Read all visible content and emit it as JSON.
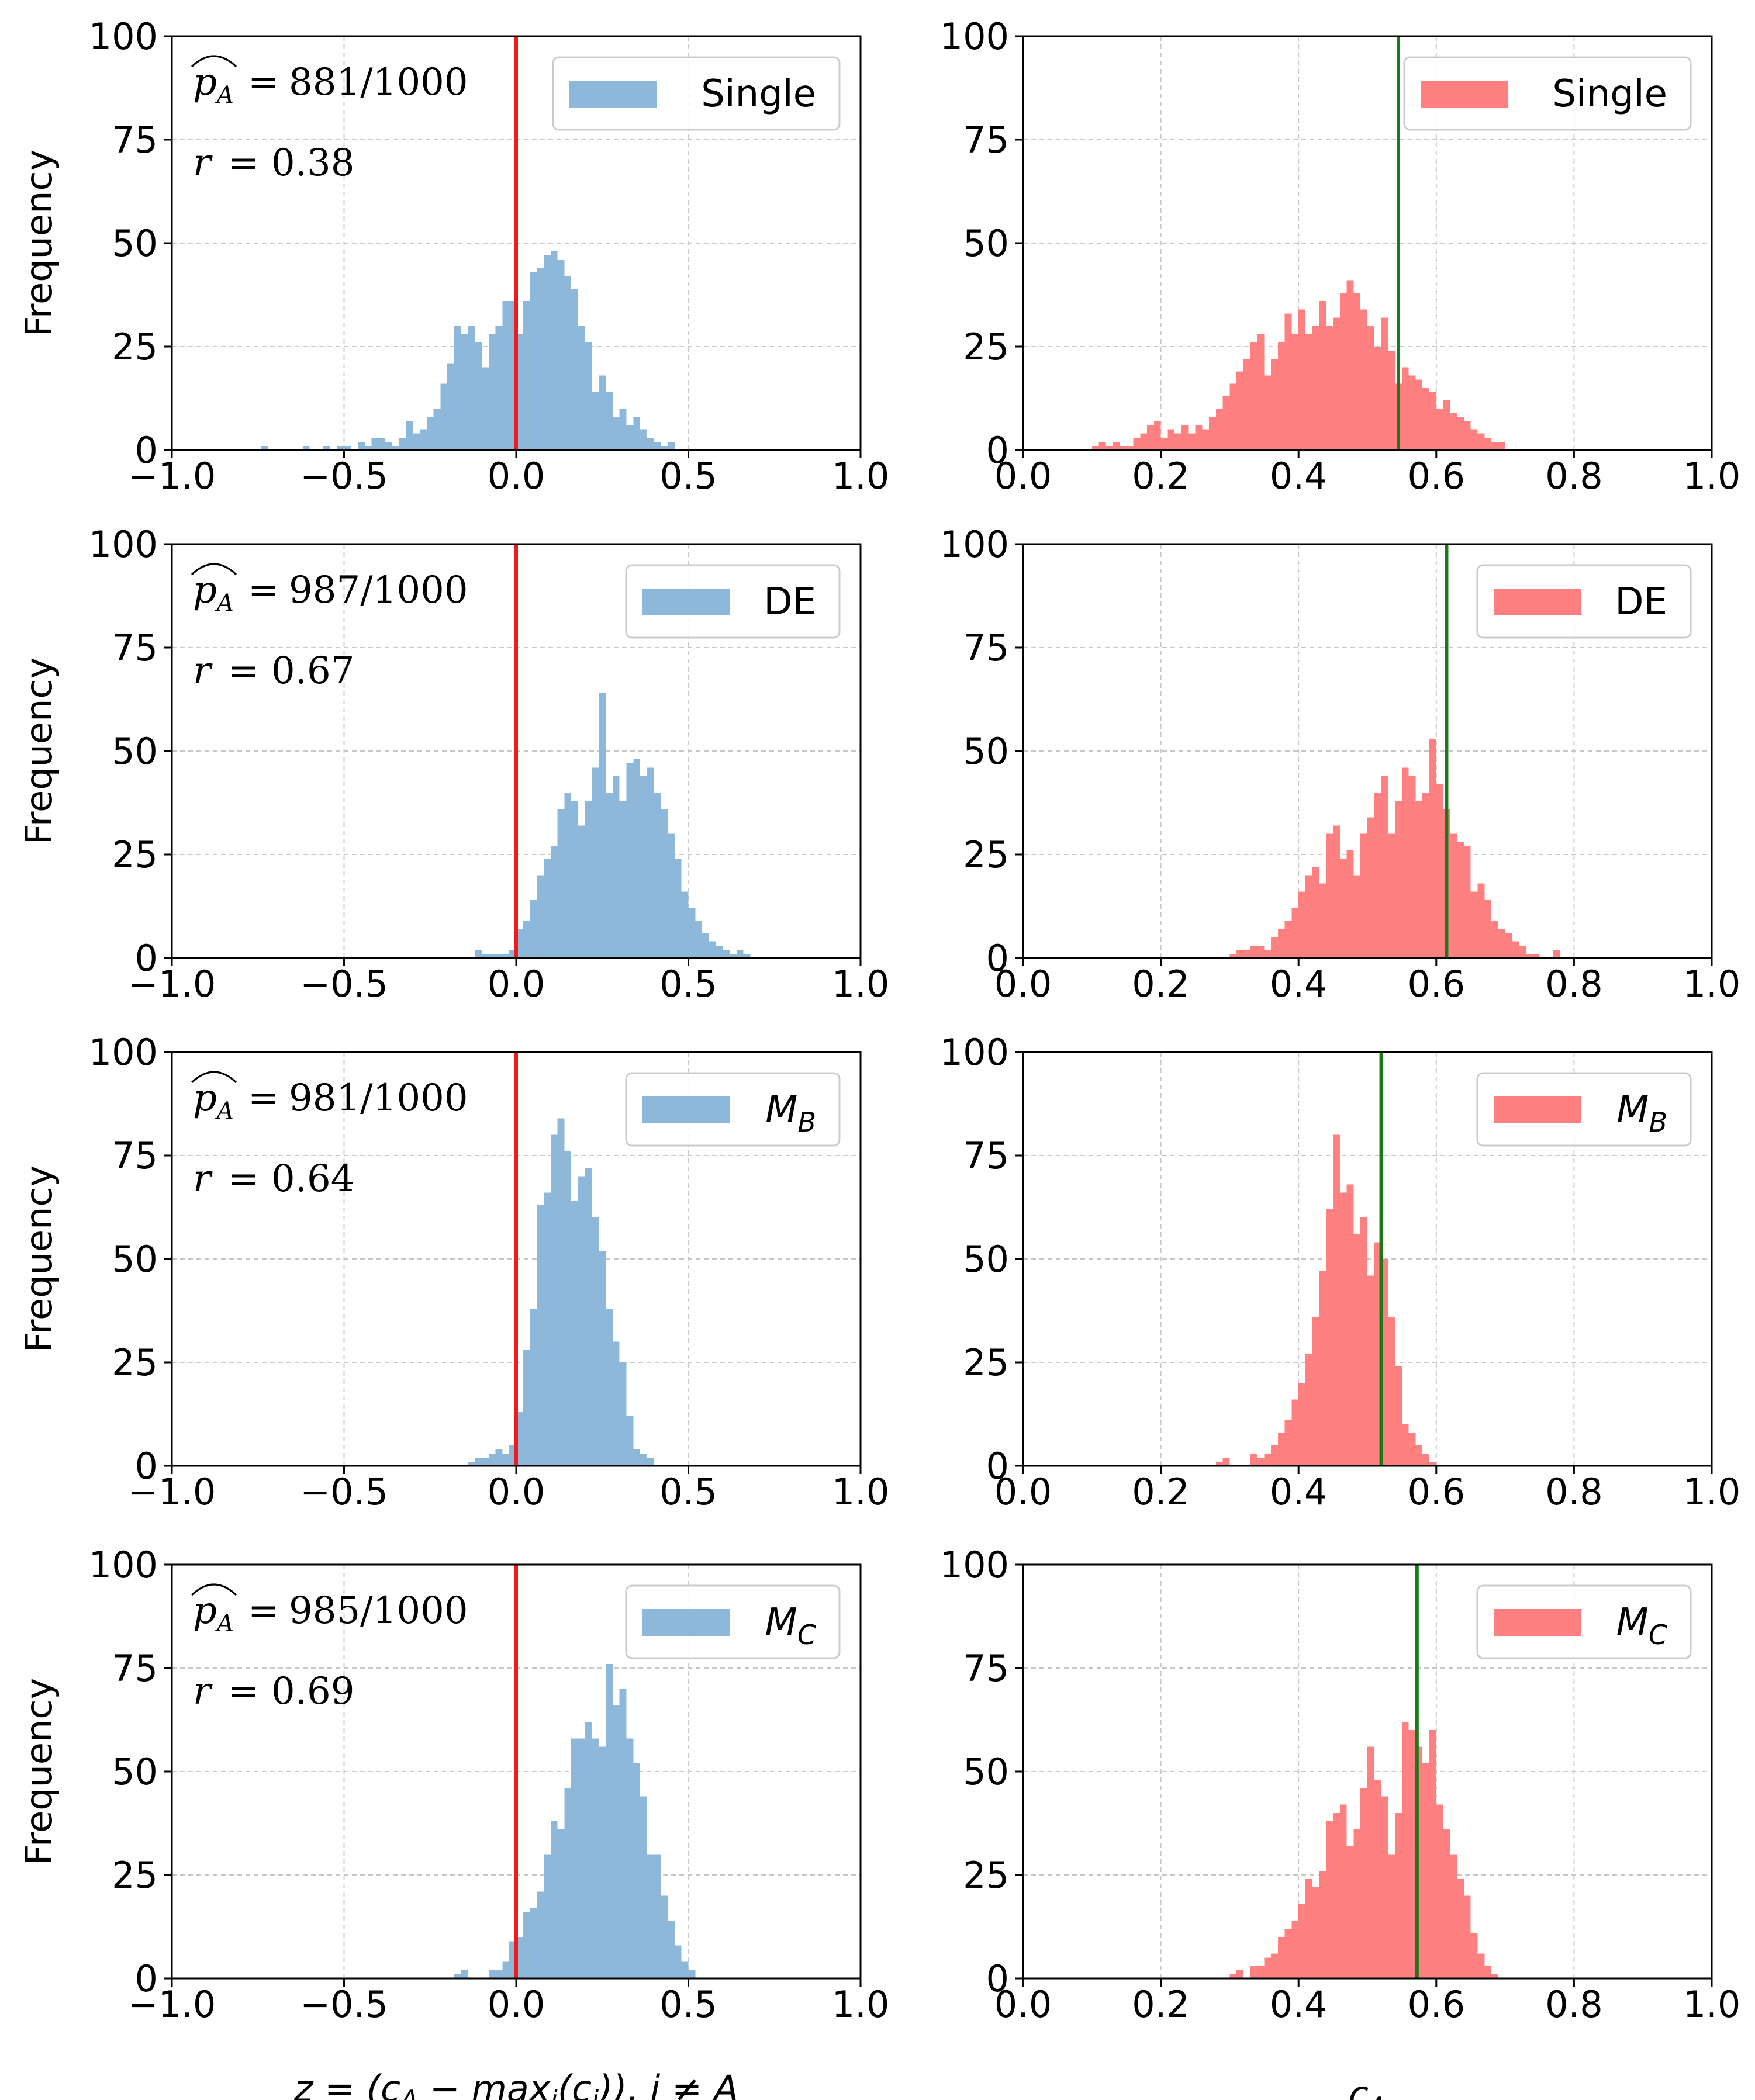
{
  "figure": {
    "y_axis_label": "Frequency",
    "x_axis_label_left": "z = (c_A − max_i(c_i)), i ≠ A",
    "x_axis_label_right": "c_A",
    "colors": {
      "blue_bar": "#8db8d9",
      "red_bar": "#ff8080",
      "threshold_line": "#ee1c1c",
      "mean_line": "#1a7a1a",
      "grid": "#c8c8c8"
    }
  },
  "chart_data": [
    {
      "type": "bar",
      "panel": "margin-single",
      "title": "",
      "legend": "Single",
      "legend_position": "top-right",
      "color": "#8db8d9",
      "xlabel": "",
      "ylabel": "Frequency",
      "xlim": [
        -1.0,
        1.0
      ],
      "ylim": [
        0,
        100
      ],
      "xticks": [
        "−1.0",
        "−0.5",
        "0.0",
        "0.5",
        "1.0"
      ],
      "yticks": [
        "0",
        "25",
        "50",
        "75",
        "100"
      ],
      "vline": 0.0,
      "vline_color": "#ee1c1c",
      "annotation": {
        "p_label": "p̂A =",
        "p_value": "881/1000",
        "r_label": "r",
        "r_value": "= 0.38"
      },
      "bin_width": 0.02,
      "bins_start": -0.74,
      "values": [
        1,
        0,
        0,
        0,
        0,
        0,
        1,
        0,
        0,
        1,
        0,
        1,
        1,
        0,
        2,
        1,
        3,
        3,
        2,
        1,
        3,
        7,
        4,
        5,
        8,
        10,
        16,
        21,
        30,
        28,
        30,
        26,
        20,
        28,
        30,
        36,
        36,
        28,
        36,
        43,
        44,
        47,
        48,
        46,
        42,
        39,
        30,
        26,
        14,
        18,
        14,
        8,
        10,
        6,
        8,
        5,
        3,
        2,
        1,
        2
      ]
    },
    {
      "type": "bar",
      "panel": "confidence-single",
      "title": "",
      "legend": "Single",
      "legend_position": "top-right",
      "color": "#ff8080",
      "xlabel": "",
      "ylabel": "",
      "xlim": [
        0.0,
        1.0
      ],
      "ylim": [
        0,
        100
      ],
      "xticks": [
        "0.0",
        "0.2",
        "0.4",
        "0.6",
        "0.8",
        "1.0"
      ],
      "yticks": [
        "0",
        "25",
        "50",
        "75",
        "100"
      ],
      "vline": 0.545,
      "vline_color": "#1a7a1a",
      "bin_width": 0.01,
      "bins_start": 0.1,
      "values": [
        1,
        2,
        1,
        2,
        1,
        1,
        3,
        4,
        6,
        7,
        3,
        5,
        4,
        6,
        4,
        6,
        5,
        8,
        10,
        13,
        16,
        19,
        22,
        26,
        28,
        18,
        22,
        26,
        33,
        28,
        34,
        28,
        30,
        36,
        30,
        32,
        38,
        41,
        38,
        34,
        30,
        25,
        32,
        24,
        16,
        20,
        18,
        17,
        15,
        14,
        10,
        12,
        9,
        8,
        7,
        5,
        4,
        3,
        2,
        2
      ]
    },
    {
      "type": "bar",
      "panel": "margin-de",
      "title": "",
      "legend": "DE",
      "legend_position": "top-right",
      "color": "#8db8d9",
      "xlabel": "",
      "ylabel": "Frequency",
      "xlim": [
        -1.0,
        1.0
      ],
      "ylim": [
        0,
        100
      ],
      "xticks": [
        "−1.0",
        "−0.5",
        "0.0",
        "0.5",
        "1.0"
      ],
      "yticks": [
        "0",
        "25",
        "50",
        "75",
        "100"
      ],
      "vline": 0.0,
      "vline_color": "#ee1c1c",
      "annotation": {
        "p_label": "p̂A =",
        "p_value": "987/1000",
        "r_label": "r",
        "r_value": "= 0.67"
      },
      "bin_width": 0.02,
      "bins_start": -0.12,
      "values": [
        2,
        1,
        1,
        1,
        1,
        2,
        7,
        9,
        14,
        20,
        24,
        27,
        36,
        40,
        38,
        32,
        38,
        46,
        64,
        40,
        44,
        38,
        47,
        48,
        44,
        46,
        40,
        36,
        30,
        24,
        16,
        12,
        9,
        6,
        4,
        3,
        2,
        1,
        2,
        1
      ]
    },
    {
      "type": "bar",
      "panel": "confidence-de",
      "title": "",
      "legend": "DE",
      "legend_position": "top-right",
      "color": "#ff8080",
      "xlabel": "",
      "ylabel": "",
      "xlim": [
        0.0,
        1.0
      ],
      "ylim": [
        0,
        100
      ],
      "xticks": [
        "0.0",
        "0.2",
        "0.4",
        "0.6",
        "0.8",
        "1.0"
      ],
      "yticks": [
        "0",
        "25",
        "50",
        "75",
        "100"
      ],
      "vline": 0.615,
      "vline_color": "#1a7a1a",
      "bin_width": 0.01,
      "bins_start": 0.3,
      "values": [
        1,
        2,
        2,
        3,
        3,
        2,
        5,
        7,
        9,
        12,
        16,
        20,
        22,
        18,
        30,
        32,
        24,
        26,
        20,
        30,
        34,
        40,
        44,
        30,
        38,
        46,
        44,
        38,
        40,
        53,
        42,
        36,
        30,
        28,
        27,
        16,
        18,
        14,
        9,
        7,
        6,
        4,
        3,
        1,
        1,
        0,
        0,
        2
      ]
    },
    {
      "type": "bar",
      "panel": "margin-mb",
      "title": "",
      "legend": "M_B",
      "legend_position": "top-right",
      "color": "#8db8d9",
      "xlabel": "",
      "ylabel": "Frequency",
      "xlim": [
        -1.0,
        1.0
      ],
      "ylim": [
        0,
        100
      ],
      "xticks": [
        "−1.0",
        "−0.5",
        "0.0",
        "0.5",
        "1.0"
      ],
      "yticks": [
        "0",
        "25",
        "50",
        "75",
        "100"
      ],
      "vline": 0.0,
      "vline_color": "#ee1c1c",
      "annotation": {
        "p_label": "p̂A =",
        "p_value": "981/1000",
        "r_label": "r",
        "r_value": "= 0.64"
      },
      "bin_width": 0.02,
      "bins_start": -0.14,
      "values": [
        1,
        2,
        2,
        3,
        4,
        3,
        5,
        13,
        28,
        38,
        63,
        66,
        80,
        84,
        76,
        64,
        70,
        72,
        60,
        52,
        38,
        30,
        25,
        12,
        4,
        3,
        2
      ]
    },
    {
      "type": "bar",
      "panel": "confidence-mb",
      "title": "",
      "legend": "M_B",
      "legend_position": "top-right",
      "color": "#ff8080",
      "xlabel": "",
      "ylabel": "",
      "xlim": [
        0.0,
        1.0
      ],
      "ylim": [
        0,
        100
      ],
      "xticks": [
        "0.0",
        "0.2",
        "0.4",
        "0.6",
        "0.8",
        "1.0"
      ],
      "yticks": [
        "0",
        "25",
        "50",
        "75",
        "100"
      ],
      "vline": 0.52,
      "vline_color": "#1a7a1a",
      "bin_width": 0.01,
      "bins_start": 0.28,
      "values": [
        1,
        2,
        0,
        0,
        0,
        3,
        2,
        3,
        5,
        8,
        11,
        16,
        20,
        27,
        36,
        47,
        62,
        80,
        66,
        68,
        56,
        60,
        46,
        54,
        50,
        36,
        24,
        10,
        8,
        5,
        3,
        1
      ]
    },
    {
      "type": "bar",
      "panel": "margin-mc",
      "title": "",
      "legend": "M_C",
      "legend_position": "top-right",
      "color": "#8db8d9",
      "xlabel": "z = (c_A − max_i(c_i)), i ≠ A",
      "ylabel": "Frequency",
      "xlim": [
        -1.0,
        1.0
      ],
      "ylim": [
        0,
        100
      ],
      "xticks": [
        "−1.0",
        "−0.5",
        "0.0",
        "0.5",
        "1.0"
      ],
      "yticks": [
        "0",
        "25",
        "50",
        "75",
        "100"
      ],
      "vline": 0.0,
      "vline_color": "#ee1c1c",
      "annotation": {
        "p_label": "p̂A =",
        "p_value": "985/1000",
        "r_label": "r",
        "r_value": "= 0.69"
      },
      "bin_width": 0.02,
      "bins_start": -0.18,
      "values": [
        1,
        2,
        0,
        0,
        0,
        2,
        2,
        4,
        9,
        10,
        16,
        17,
        21,
        30,
        38,
        36,
        46,
        58,
        58,
        62,
        58,
        56,
        76,
        66,
        70,
        58,
        52,
        44,
        30,
        30,
        20,
        14,
        8,
        4,
        2
      ]
    },
    {
      "type": "bar",
      "panel": "confidence-mc",
      "title": "",
      "legend": "M_C",
      "legend_position": "top-right",
      "color": "#ff8080",
      "xlabel": "c_A",
      "ylabel": "",
      "xlim": [
        0.0,
        1.0
      ],
      "ylim": [
        0,
        100
      ],
      "xticks": [
        "0.0",
        "0.2",
        "0.4",
        "0.6",
        "0.8",
        "1.0"
      ],
      "yticks": [
        "0",
        "25",
        "50",
        "75",
        "100"
      ],
      "vline": 0.572,
      "vline_color": "#1a7a1a",
      "bin_width": 0.01,
      "bins_start": 0.3,
      "values": [
        1,
        2,
        0,
        3,
        3,
        5,
        6,
        10,
        12,
        14,
        18,
        24,
        22,
        26,
        38,
        40,
        42,
        32,
        36,
        46,
        56,
        48,
        44,
        30,
        40,
        62,
        60,
        56,
        52,
        60,
        42,
        36,
        30,
        24,
        20,
        11,
        6,
        3,
        1
      ]
    }
  ]
}
